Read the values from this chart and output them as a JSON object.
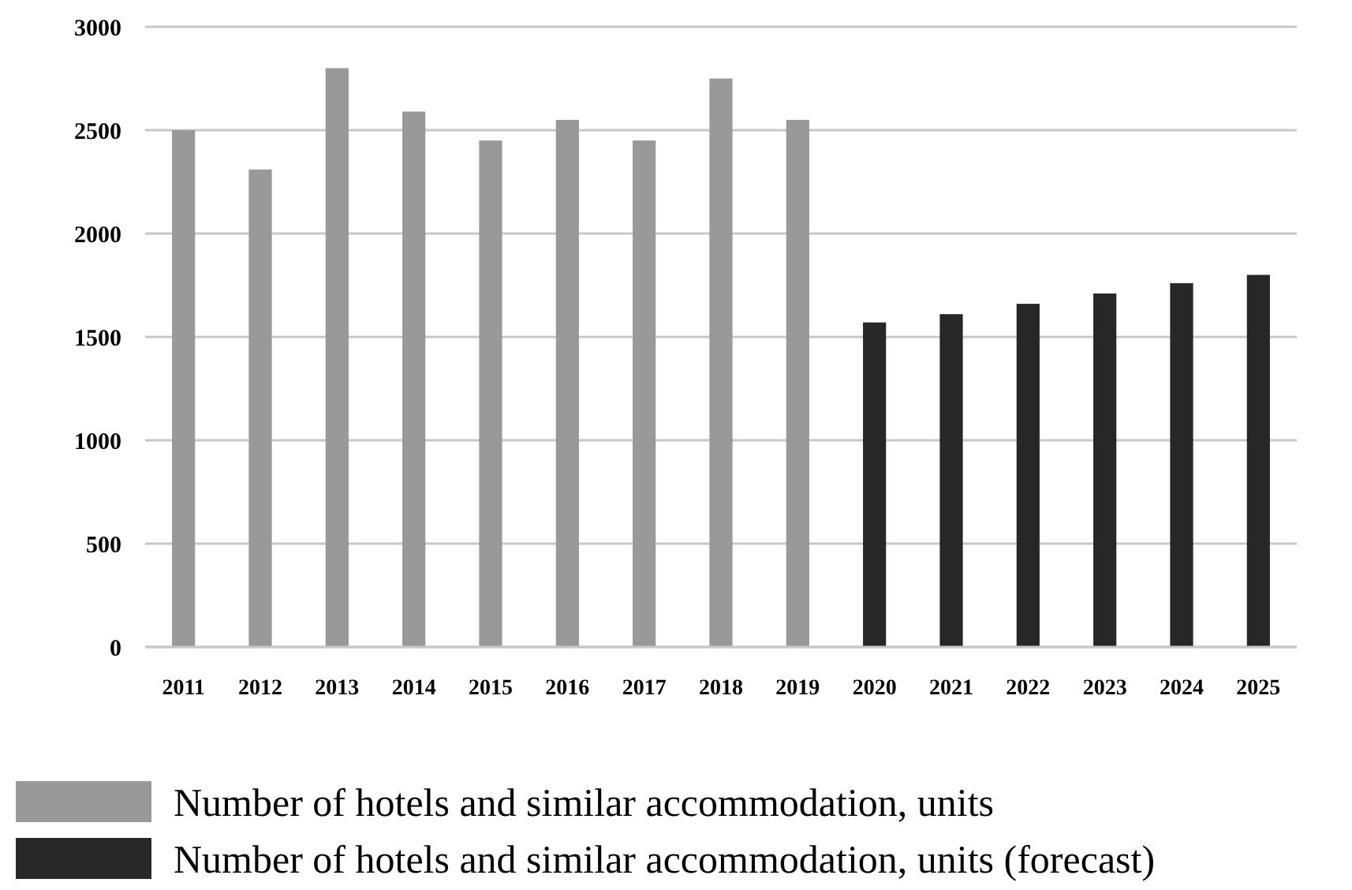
{
  "chart_data": {
    "type": "bar",
    "categories": [
      "2011",
      "2012",
      "2013",
      "2014",
      "2015",
      "2016",
      "2017",
      "2018",
      "2019",
      "2020",
      "2021",
      "2022",
      "2023",
      "2024",
      "2025"
    ],
    "series": [
      {
        "name": "Number of hotels and similar accommodation, units",
        "color": "#999999",
        "values": [
          2500,
          2310,
          2800,
          2590,
          2450,
          2550,
          2450,
          2750,
          2550,
          null,
          null,
          null,
          null,
          null,
          null
        ]
      },
      {
        "name": "Number of hotels and similar accommodation, units (forecast)",
        "color": "#272727",
        "values": [
          null,
          null,
          null,
          null,
          null,
          null,
          null,
          null,
          null,
          1570,
          1610,
          1660,
          1710,
          1760,
          1800
        ]
      }
    ],
    "ylim": [
      0,
      3000
    ],
    "yticks": [
      0,
      500,
      1000,
      1500,
      2000,
      2500,
      3000
    ],
    "grid": "y",
    "legend": "bottom"
  }
}
